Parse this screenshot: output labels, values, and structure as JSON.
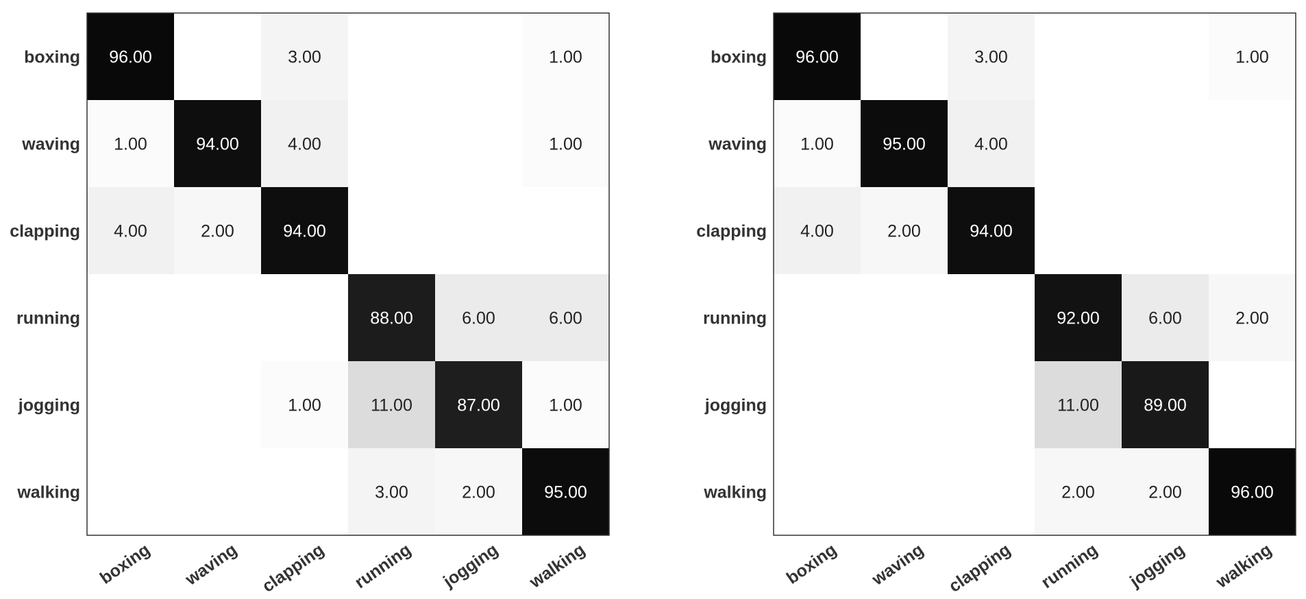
{
  "chart_data": [
    {
      "type": "heatmap",
      "row_labels": [
        "boxing",
        "waving",
        "clapping",
        "running",
        "jogging",
        "walking"
      ],
      "col_labels": [
        "boxing",
        "waving",
        "clapping",
        "running",
        "jogging",
        "walking"
      ],
      "values": [
        [
          96,
          0,
          3,
          0,
          0,
          1
        ],
        [
          1,
          94,
          4,
          0,
          0,
          1
        ],
        [
          4,
          2,
          94,
          0,
          0,
          0
        ],
        [
          0,
          0,
          0,
          88,
          6,
          6
        ],
        [
          0,
          0,
          1,
          11,
          87,
          1
        ],
        [
          0,
          0,
          0,
          3,
          2,
          95
        ]
      ],
      "value_format": "2 decimals, blank when zero",
      "colormap": "white (0) to black (100)"
    },
    {
      "type": "heatmap",
      "row_labels": [
        "boxing",
        "waving",
        "clapping",
        "running",
        "jogging",
        "walking"
      ],
      "col_labels": [
        "boxing",
        "waving",
        "clapping",
        "running",
        "jogging",
        "walking"
      ],
      "values": [
        [
          96,
          0,
          3,
          0,
          0,
          1
        ],
        [
          1,
          95,
          4,
          0,
          0,
          0
        ],
        [
          4,
          2,
          94,
          0,
          0,
          0
        ],
        [
          0,
          0,
          0,
          92,
          6,
          2
        ],
        [
          0,
          0,
          0,
          11,
          89,
          0
        ],
        [
          0,
          0,
          0,
          2,
          2,
          96
        ]
      ],
      "value_format": "2 decimals, blank when zero",
      "colormap": "white (0) to black (100)"
    }
  ]
}
